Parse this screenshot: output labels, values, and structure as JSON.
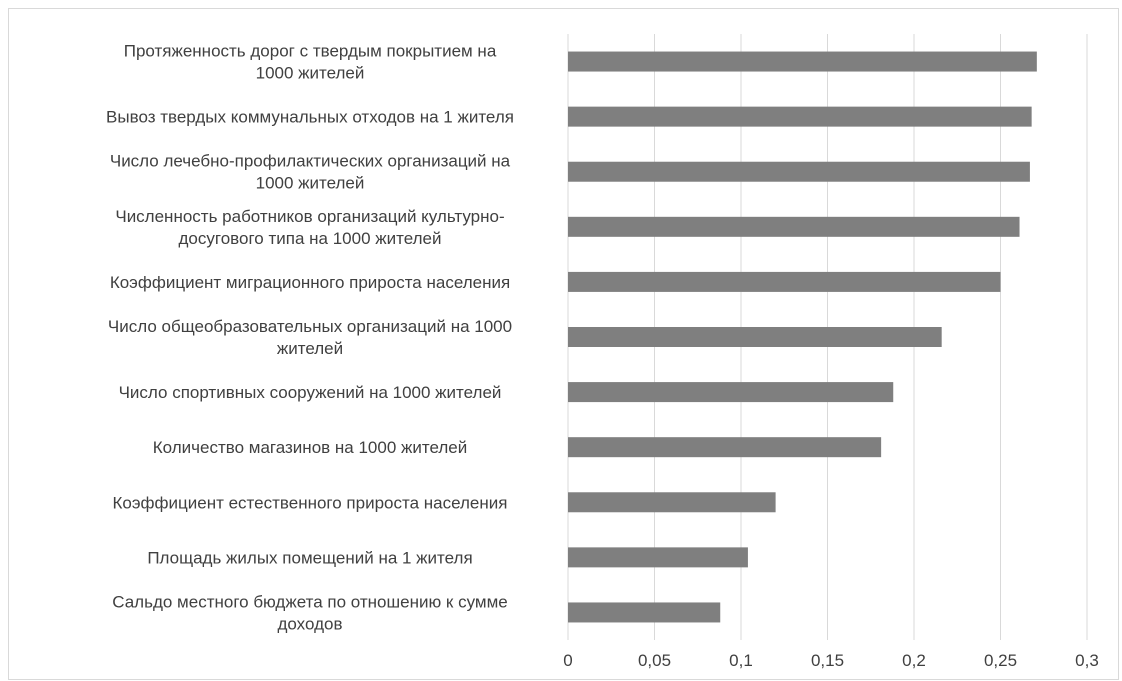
{
  "chart_data": {
    "type": "bar",
    "orientation": "horizontal",
    "categories": [
      [
        "Протяженность дорог с твердым покрытием на",
        "1000 жителей"
      ],
      [
        "Вывоз твердых коммунальных отходов на 1 жителя"
      ],
      [
        "Число лечебно-профилактических организаций на",
        "1000 жителей"
      ],
      [
        "Численность работников организаций культурно-",
        "досугового типа на 1000 жителей"
      ],
      [
        "Коэффициент миграционного прироста населения"
      ],
      [
        "Число общеобразовательных организаций на 1000",
        "жителей"
      ],
      [
        "Число спортивных сооружений на 1000 жителей"
      ],
      [
        "Количество магазинов на 1000 жителей"
      ],
      [
        "Коэффициент естественного прироста населения"
      ],
      [
        "Площадь жилых помещений на 1 жителя"
      ],
      [
        "Сальдо местного бюджета по отношению к сумме",
        "доходов"
      ]
    ],
    "values": [
      0.271,
      0.268,
      0.267,
      0.261,
      0.25,
      0.216,
      0.188,
      0.181,
      0.12,
      0.104,
      0.088
    ],
    "xlim": [
      0,
      0.3
    ],
    "xticks": [
      "0",
      "0,05",
      "0,1",
      "0,15",
      "0,2",
      "0,25",
      "0,3"
    ],
    "xtick_values": [
      0,
      0.05,
      0.1,
      0.15,
      0.2,
      0.25,
      0.3
    ],
    "grid": true,
    "bar_color": "#7f7f7f",
    "grid_color": "#d9d9d9"
  }
}
